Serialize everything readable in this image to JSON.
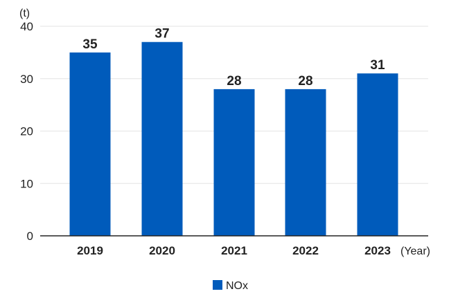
{
  "chart_data": {
    "type": "bar",
    "ylabel": "(t)",
    "xlabel": "(Year)",
    "categories": [
      "2019",
      "2020",
      "2021",
      "2022",
      "2023"
    ],
    "series": [
      {
        "name": "NOx",
        "values": [
          35,
          37,
          28,
          28,
          31
        ]
      }
    ],
    "ylim": [
      0,
      40
    ],
    "yticks": [
      0,
      10,
      20,
      30,
      40
    ],
    "grid": true,
    "legend_position": "bottom-center",
    "colors": {
      "bar": "#005bbb",
      "grid": "#e3e3e3",
      "axis": "#222222"
    }
  }
}
